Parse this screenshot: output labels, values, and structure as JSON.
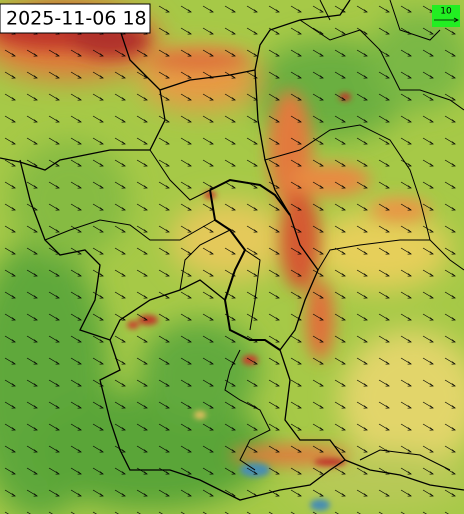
{
  "timestamp": "2025-11-06 18",
  "legend": {
    "label": "10"
  }
}
